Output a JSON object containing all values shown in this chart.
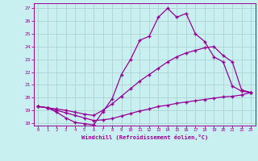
{
  "xlabel": "Windchill (Refroidissement éolien,°C)",
  "bg_color": "#c8f0f0",
  "line_color": "#990099",
  "grid_color": "#aacccc",
  "ylim": [
    17.8,
    27.4
  ],
  "xlim": [
    -0.5,
    23.5
  ],
  "yticks": [
    18,
    19,
    20,
    21,
    22,
    23,
    24,
    25,
    26,
    27
  ],
  "xticks": [
    0,
    1,
    2,
    3,
    4,
    5,
    6,
    7,
    8,
    9,
    10,
    11,
    12,
    13,
    14,
    15,
    16,
    17,
    18,
    19,
    20,
    21,
    22,
    23
  ],
  "line1_x": [
    0,
    1,
    2,
    3,
    4,
    5,
    6,
    7,
    8,
    9,
    10,
    11,
    12,
    13,
    14,
    15,
    16,
    17,
    18,
    19,
    20,
    21,
    22,
    23
  ],
  "line1_y": [
    19.3,
    19.2,
    18.85,
    18.4,
    18.05,
    17.95,
    17.85,
    18.9,
    19.9,
    21.8,
    23.0,
    24.5,
    24.8,
    26.3,
    27.0,
    26.3,
    26.6,
    25.0,
    24.4,
    23.2,
    22.8,
    20.9,
    20.5,
    20.4
  ],
  "line2_x": [
    0,
    1,
    2,
    3,
    4,
    5,
    6,
    7,
    8,
    9,
    10,
    11,
    12,
    13,
    14,
    15,
    16,
    17,
    18,
    19,
    20,
    21,
    22,
    23
  ],
  "line2_y": [
    19.3,
    19.2,
    19.1,
    19.0,
    18.85,
    18.7,
    18.6,
    19.0,
    19.5,
    20.1,
    20.7,
    21.3,
    21.8,
    22.3,
    22.8,
    23.2,
    23.5,
    23.7,
    23.9,
    24.0,
    23.3,
    22.8,
    20.6,
    20.4
  ],
  "line3_x": [
    0,
    1,
    2,
    3,
    4,
    5,
    6,
    7,
    8,
    9,
    10,
    11,
    12,
    13,
    14,
    15,
    16,
    17,
    18,
    19,
    20,
    21,
    22,
    23
  ],
  "line3_y": [
    19.3,
    19.2,
    19.0,
    18.8,
    18.6,
    18.4,
    18.2,
    18.25,
    18.35,
    18.55,
    18.75,
    18.95,
    19.1,
    19.3,
    19.4,
    19.55,
    19.65,
    19.75,
    19.85,
    19.95,
    20.05,
    20.1,
    20.2,
    20.4
  ]
}
